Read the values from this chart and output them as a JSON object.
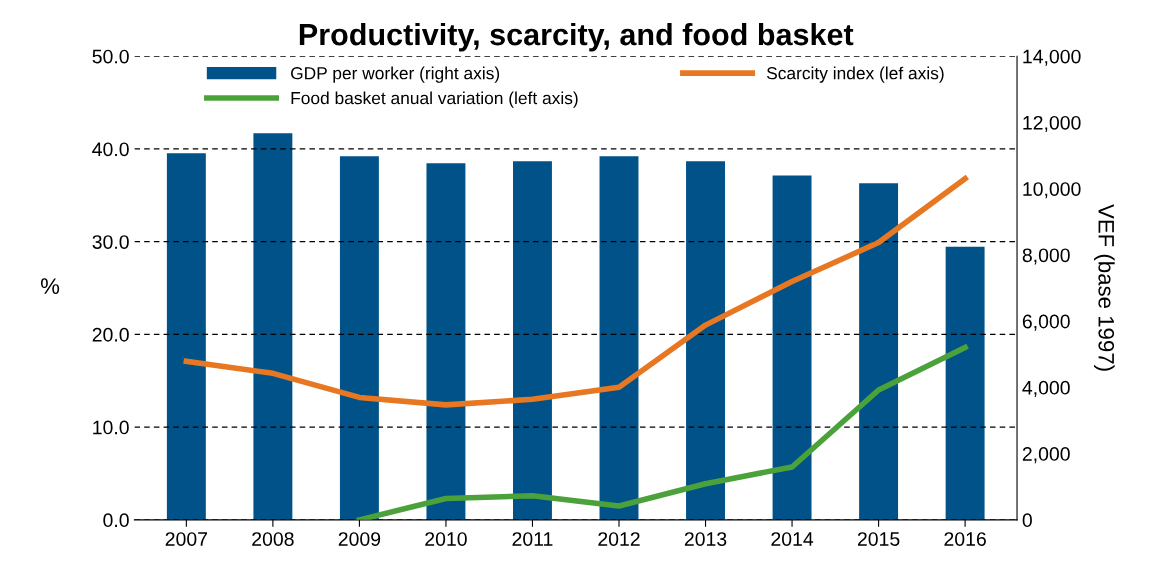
{
  "chart_data": {
    "type": "bar",
    "title": "Productivity, scarcity, and food basket",
    "categories": [
      "2007",
      "2008",
      "2009",
      "2010",
      "2011",
      "2012",
      "2013",
      "2014",
      "2015",
      "2016"
    ],
    "ylabel": "%",
    "y2label": "VEF (base 1997)",
    "series": [
      {
        "name": "GDP per worker (right axis)",
        "axis": "y2",
        "color": "#005288",
        "values": [
          11070,
          11670,
          10980,
          10770,
          10830,
          10980,
          10830,
          10400,
          10160,
          8250
        ]
      },
      {
        "name": "Scarcity index (lef axis)",
        "type": "line",
        "color": "#e87722",
        "values": [
          17.1,
          15.8,
          13.2,
          12.4,
          13.0,
          14.3,
          21.0,
          25.7,
          29.9,
          36.8
        ]
      },
      {
        "name": "Food basket anual variation (left axis)",
        "type": "line",
        "color": "#4ca23a",
        "values": [
          null,
          null,
          0.0,
          2.3,
          2.6,
          1.5,
          3.9,
          5.7,
          14.0,
          18.6
        ]
      }
    ],
    "ylim": [
      0,
      50
    ],
    "yticks": [
      {
        "value": 0,
        "label": "0.0"
      },
      {
        "value": 10,
        "label": "10.0"
      },
      {
        "value": 20,
        "label": "20.0"
      },
      {
        "value": 30,
        "label": "30.0"
      },
      {
        "value": 40,
        "label": "40.0"
      },
      {
        "value": 50,
        "label": "50.0"
      }
    ],
    "y2lim": [
      0,
      14000
    ],
    "y2ticks": [
      {
        "value": 0,
        "label": "0"
      },
      {
        "value": 2000,
        "label": "2,000"
      },
      {
        "value": 4000,
        "label": "4,000"
      },
      {
        "value": 6000,
        "label": "6,000"
      },
      {
        "value": 8000,
        "label": "8,000"
      },
      {
        "value": 10000,
        "label": "10,000"
      },
      {
        "value": 12000,
        "label": "12,000"
      },
      {
        "value": 14000,
        "label": "14,000"
      }
    ],
    "grid": "y",
    "legend": "top",
    "marker": "none",
    "line_style": "solid"
  }
}
